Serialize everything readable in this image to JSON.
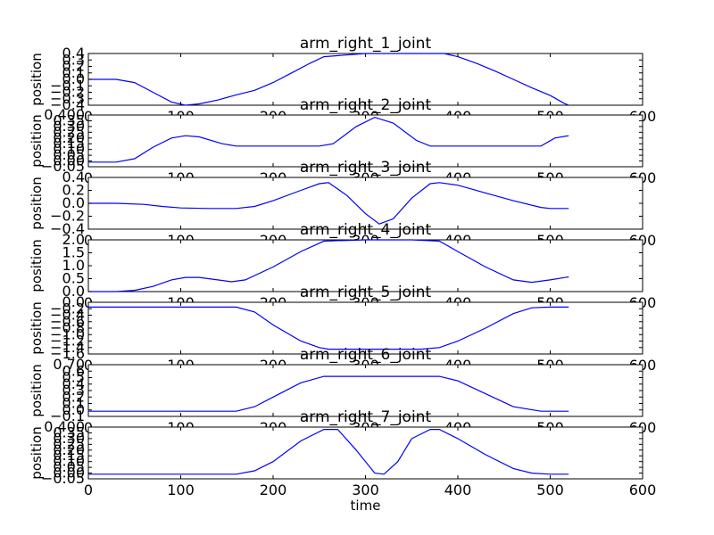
{
  "chart_data": [
    {
      "type": "line",
      "title": "arm_right_1_joint",
      "ylabel": "position",
      "xlabel": "",
      "xlim": [
        0,
        600
      ],
      "ylim": [
        -0.4,
        0.4
      ],
      "xticks": [
        "0",
        "100",
        "200",
        "300",
        "400",
        "500",
        "600"
      ],
      "yticks": [
        "0.4",
        "0.3",
        "0.2",
        "0.1",
        "0.0",
        "−0.1",
        "−0.2",
        "−0.3",
        "−0.4"
      ],
      "x": [
        0,
        30,
        50,
        70,
        90,
        105,
        120,
        140,
        160,
        180,
        200,
        220,
        240,
        255,
        300,
        350,
        385,
        400,
        420,
        440,
        460,
        480,
        500,
        515,
        520
      ],
      "y": [
        0.0,
        0.0,
        -0.05,
        -0.2,
        -0.35,
        -0.4,
        -0.38,
        -0.32,
        -0.24,
        -0.17,
        -0.05,
        0.1,
        0.25,
        0.35,
        0.4,
        0.4,
        0.4,
        0.35,
        0.25,
        0.13,
        0.0,
        -0.13,
        -0.25,
        -0.37,
        -0.4
      ]
    },
    {
      "type": "line",
      "title": "arm_right_2_joint",
      "ylabel": "position",
      "xlabel": "",
      "xlim": [
        0,
        600
      ],
      "ylim": [
        -0.05,
        0.4
      ],
      "xticks": [
        "0",
        "100",
        "200",
        "300",
        "400",
        "500",
        "600"
      ],
      "yticks": [
        "0.400",
        "0.35",
        "0.30",
        "0.25",
        "0.20",
        "0.15",
        "0.10",
        "0.05",
        "0.00",
        "−0.05"
      ],
      "x": [
        0,
        30,
        50,
        70,
        90,
        105,
        120,
        145,
        160,
        200,
        250,
        265,
        290,
        310,
        330,
        355,
        370,
        400,
        450,
        480,
        490,
        505,
        520
      ],
      "y": [
        -0.01,
        -0.01,
        0.02,
        0.12,
        0.2,
        0.22,
        0.21,
        0.15,
        0.13,
        0.13,
        0.13,
        0.15,
        0.3,
        0.38,
        0.33,
        0.18,
        0.13,
        0.13,
        0.13,
        0.13,
        0.13,
        0.2,
        0.22
      ]
    },
    {
      "type": "line",
      "title": "arm_right_3_joint",
      "ylabel": "position",
      "xlabel": "",
      "xlim": [
        0,
        600
      ],
      "ylim": [
        -0.5,
        0.5
      ],
      "xticks": [
        "0",
        "100",
        "200",
        "300",
        "400",
        "500",
        "600"
      ],
      "yticks": [
        "0.4",
        "0.2",
        "0.0",
        "−0.2",
        "−0.4"
      ],
      "x": [
        0,
        30,
        60,
        80,
        100,
        130,
        160,
        180,
        200,
        230,
        250,
        260,
        280,
        300,
        315,
        330,
        350,
        370,
        380,
        400,
        430,
        460,
        490,
        500,
        520
      ],
      "y": [
        0.0,
        0.0,
        -0.02,
        -0.06,
        -0.09,
        -0.1,
        -0.1,
        -0.06,
        0.05,
        0.25,
        0.38,
        0.4,
        0.15,
        -0.2,
        -0.4,
        -0.3,
        0.1,
        0.38,
        0.4,
        0.35,
        0.2,
        0.05,
        -0.08,
        -0.1,
        -0.1
      ]
    },
    {
      "type": "line",
      "title": "arm_right_4_joint",
      "ylabel": "position",
      "xlabel": "",
      "xlim": [
        0,
        600
      ],
      "ylim": [
        0.0,
        2.0
      ],
      "xticks": [
        "0",
        "100",
        "200",
        "300",
        "400",
        "500",
        "600"
      ],
      "yticks": [
        "2.0",
        "1.5",
        "1.0",
        "0.5",
        "0.0"
      ],
      "x": [
        0,
        30,
        50,
        70,
        90,
        105,
        120,
        140,
        155,
        170,
        200,
        230,
        255,
        300,
        350,
        380,
        400,
        430,
        460,
        480,
        500,
        520
      ],
      "y": [
        0.0,
        0.0,
        0.05,
        0.2,
        0.45,
        0.55,
        0.55,
        0.45,
        0.38,
        0.45,
        0.95,
        1.55,
        1.95,
        2.0,
        2.0,
        1.95,
        1.55,
        0.95,
        0.45,
        0.36,
        0.45,
        0.57
      ]
    },
    {
      "type": "line",
      "title": "arm_right_5_joint",
      "ylabel": "position",
      "xlabel": "",
      "xlim": [
        0,
        600
      ],
      "ylim": [
        -1.6,
        0.0
      ],
      "xticks": [
        "0",
        "100",
        "200",
        "300",
        "400",
        "500",
        "600"
      ],
      "yticks": [
        "0.0",
        "−0.2",
        "−0.4",
        "−0.6",
        "−0.8",
        "−1.0",
        "−1.2",
        "−1.4",
        "−1.6"
      ],
      "x": [
        0,
        100,
        160,
        180,
        200,
        230,
        250,
        260,
        300,
        360,
        380,
        400,
        430,
        460,
        480,
        500,
        520
      ],
      "y": [
        -0.15,
        -0.15,
        -0.15,
        -0.3,
        -0.7,
        -1.2,
        -1.4,
        -1.45,
        -1.45,
        -1.45,
        -1.4,
        -1.2,
        -0.8,
        -0.35,
        -0.17,
        -0.15,
        -0.15
      ]
    },
    {
      "type": "line",
      "title": "arm_right_6_joint",
      "ylabel": "position",
      "xlabel": "",
      "xlim": [
        0,
        600
      ],
      "ylim": [
        -0.1,
        0.7
      ],
      "xticks": [
        "0",
        "100",
        "200",
        "300",
        "400",
        "500",
        "600"
      ],
      "yticks": [
        "0.70",
        "0.6",
        "0.5",
        "0.4",
        "0.3",
        "0.2",
        "0.1",
        "0.0",
        "−0.1"
      ],
      "x": [
        0,
        100,
        160,
        180,
        200,
        230,
        255,
        300,
        380,
        400,
        430,
        460,
        490,
        500,
        520
      ],
      "y": [
        -0.02,
        -0.02,
        -0.02,
        0.05,
        0.2,
        0.42,
        0.52,
        0.52,
        0.52,
        0.45,
        0.25,
        0.05,
        -0.02,
        -0.02,
        -0.02
      ]
    },
    {
      "type": "line",
      "title": "arm_right_7_joint",
      "ylabel": "position",
      "xlabel": "time",
      "xlim": [
        0,
        600
      ],
      "ylim": [
        -0.05,
        0.4
      ],
      "xticks": [
        "0",
        "100",
        "200",
        "300",
        "400",
        "500",
        "600"
      ],
      "yticks": [
        "0.400",
        "0.35",
        "0.30",
        "0.25",
        "0.20",
        "0.15",
        "0.10",
        "0.05",
        "0.00",
        "−0.05"
      ],
      "x": [
        0,
        100,
        160,
        180,
        200,
        230,
        255,
        270,
        290,
        310,
        320,
        335,
        350,
        370,
        380,
        400,
        430,
        460,
        480,
        500,
        520
      ],
      "y": [
        -0.01,
        -0.01,
        -0.01,
        0.02,
        0.1,
        0.28,
        0.38,
        0.38,
        0.2,
        0.0,
        -0.01,
        0.1,
        0.3,
        0.38,
        0.38,
        0.3,
        0.16,
        0.04,
        0.0,
        -0.01,
        -0.01
      ]
    }
  ]
}
